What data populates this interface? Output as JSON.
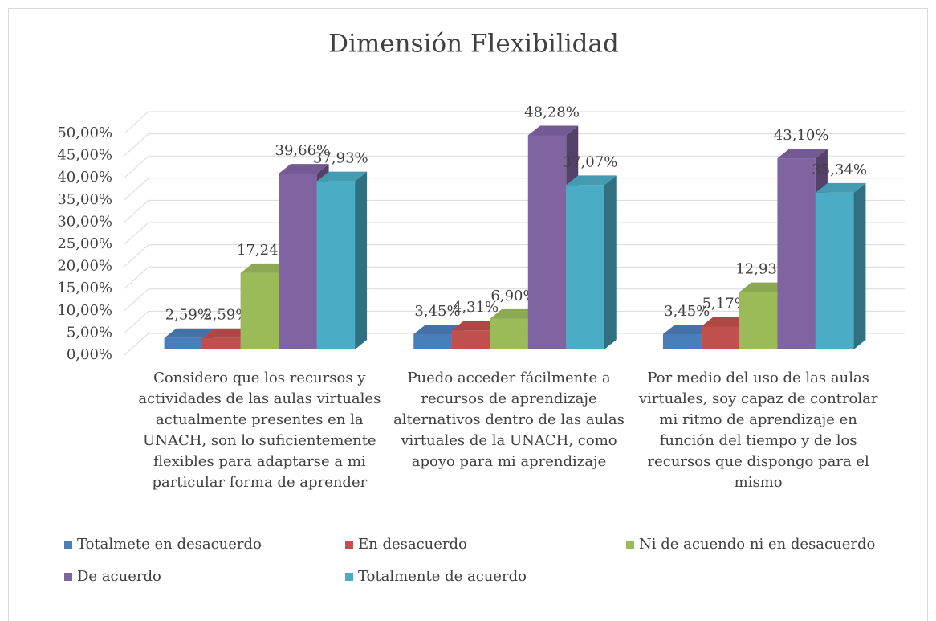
{
  "chart_data": {
    "type": "bar3d",
    "title": "Dimensión Flexibilidad",
    "categories": [
      "Considero que los recursos y actividades de las aulas virtuales actualmente presentes en la UNACH, son lo suficientemente flexibles para adaptarse a mi particular forma de aprender",
      "Puedo acceder fácilmente a recursos de aprendizaje alternativos dentro de las aulas virtuales de la UNACH, como apoyo para mi aprendizaje",
      "Por medio del uso de las aulas virtuales, soy capaz de controlar mi ritmo de aprendizaje en función del tiempo y de los recursos que dispongo para el mismo"
    ],
    "series": [
      {
        "name": "Totalmete en desacuerdo",
        "color": "#4a7ebb",
        "values": [
          2.59,
          3.45,
          3.45
        ],
        "value_labels": [
          "2,59%",
          "3,45%",
          "3,45%"
        ]
      },
      {
        "name": "En desacuerdo",
        "color": "#c0504d",
        "values": [
          2.59,
          4.31,
          5.17
        ],
        "value_labels": [
          "2,59%",
          "4,31%",
          "5,17%"
        ]
      },
      {
        "name": "Ni de acuendo ni en desacuerdo",
        "color": "#9bbb59",
        "values": [
          17.24,
          6.9,
          12.93
        ],
        "value_labels": [
          "17,24%",
          "6,90%",
          "12,93%"
        ]
      },
      {
        "name": "De acuerdo",
        "color": "#8064a2",
        "values": [
          39.66,
          48.28,
          43.1
        ],
        "value_labels": [
          "39,66%",
          "48,28%",
          "43,10%"
        ]
      },
      {
        "name": "Totalmente de acuerdo",
        "color": "#4bacc6",
        "values": [
          37.93,
          37.07,
          35.34
        ],
        "value_labels": [
          "37,93%",
          "37,07%",
          "35,34%"
        ]
      }
    ],
    "ylim": [
      0,
      50
    ],
    "yticks": [
      {
        "value": 0,
        "label": "0,00%"
      },
      {
        "value": 5,
        "label": "5,00%"
      },
      {
        "value": 10,
        "label": "10,00%"
      },
      {
        "value": 15,
        "label": "15,00%"
      },
      {
        "value": 20,
        "label": "20,00%"
      },
      {
        "value": 25,
        "label": "25,00%"
      },
      {
        "value": 30,
        "label": "30,00%"
      },
      {
        "value": 35,
        "label": "35,00%"
      },
      {
        "value": 40,
        "label": "40,00%"
      },
      {
        "value": 45,
        "label": "45,00%"
      },
      {
        "value": 50,
        "label": "50,00%"
      }
    ],
    "grid": true,
    "legend": "bottom"
  }
}
